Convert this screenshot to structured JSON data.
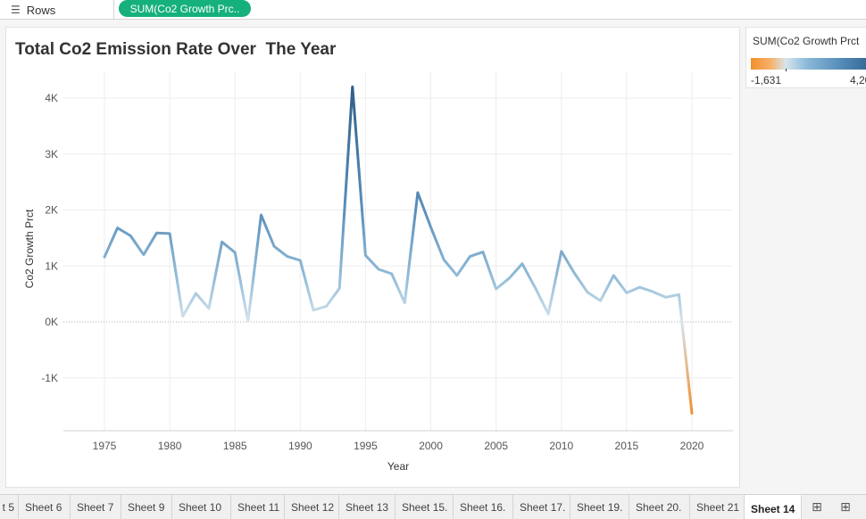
{
  "shelf": {
    "label": "Rows",
    "pill": "SUM(Co2 Growth Prc.."
  },
  "legend": {
    "title": "SUM(Co2 Growth Prct",
    "min_label": "-1,631",
    "max_label": "4,20",
    "colors": [
      "#f28e2b",
      "#d6e4ec",
      "#2f5f8a"
    ]
  },
  "chart_data": {
    "type": "line",
    "title": "Total Co2 Emission Rate Over  The Year",
    "xlabel": "Year",
    "ylabel": "Co2 Growth Prct",
    "xlim": [
      1971,
      2023
    ],
    "ylim": [
      -2000,
      4500
    ],
    "xticks": [
      1975,
      1980,
      1985,
      1990,
      1995,
      2000,
      2005,
      2010,
      2015,
      2020
    ],
    "xtick_labels": [
      "1975",
      "1980",
      "1985",
      "1990",
      "1995",
      "2000",
      "2005",
      "2010",
      "2015",
      "2020"
    ],
    "yticks": [
      -1000,
      0,
      1000,
      2000,
      3000,
      4000
    ],
    "ytick_labels": [
      "-1K",
      "0K",
      "1K",
      "2K",
      "3K",
      "4K"
    ],
    "grid": true,
    "zero_line": true,
    "color_range": [
      -1631,
      4200
    ],
    "x": [
      1975,
      1976,
      1977,
      1978,
      1979,
      1980,
      1981,
      1982,
      1983,
      1984,
      1985,
      1986,
      1987,
      1988,
      1989,
      1990,
      1991,
      1992,
      1993,
      1994,
      1995,
      1996,
      1997,
      1998,
      1999,
      2000,
      2001,
      2002,
      2003,
      2004,
      2005,
      2006,
      2007,
      2008,
      2009,
      2010,
      2011,
      2012,
      2013,
      2014,
      2015,
      2016,
      2017,
      2018,
      2019,
      2020
    ],
    "y": [
      1160,
      1680,
      1540,
      1200,
      1590,
      1580,
      100,
      510,
      240,
      1430,
      1240,
      10,
      1910,
      1350,
      1170,
      1100,
      210,
      280,
      600,
      4200,
      1190,
      940,
      860,
      340,
      2310,
      1690,
      1110,
      830,
      1170,
      1250,
      590,
      780,
      1040,
      610,
      140,
      1260,
      870,
      530,
      380,
      830,
      520,
      620,
      540,
      440,
      490,
      -1631
    ]
  },
  "tabs": [
    {
      "label": "t 5"
    },
    {
      "label": "Sheet 6"
    },
    {
      "label": "Sheet 7"
    },
    {
      "label": "Sheet 9"
    },
    {
      "label": "Sheet 10"
    },
    {
      "label": "Sheet 11"
    },
    {
      "label": "Sheet 12"
    },
    {
      "label": "Sheet 13"
    },
    {
      "label": "Sheet 15."
    },
    {
      "label": "Sheet 16."
    },
    {
      "label": "Sheet 17."
    },
    {
      "label": "Sheet 19."
    },
    {
      "label": "Sheet 20."
    },
    {
      "label": "Sheet 21"
    },
    {
      "label": "Sheet 14",
      "active": true
    }
  ],
  "tab_icons": [
    "new-worksheet-icon",
    "new-dashboard-icon"
  ]
}
